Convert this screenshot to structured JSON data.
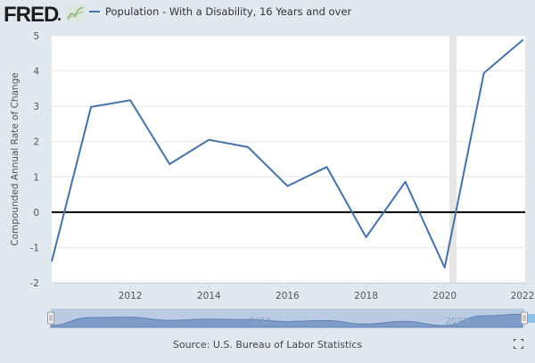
{
  "header": {
    "logo_text": "FRED",
    "logo_icon": "line-chart-icon"
  },
  "source": "Source: U.S. Bureau of Labor Statistics",
  "fullscreen_icon": "fullscreen-icon",
  "colors": {
    "series": "#4572a7",
    "background": "#e1e9f0",
    "plot": "#ffffff",
    "recession": "#e6e6e6",
    "zero_line": "#000000",
    "navigator_fill": "#7d9cc8",
    "navigator_mask": "#bccbe4"
  },
  "chart_data": {
    "type": "line",
    "title": "",
    "xlabel": "",
    "ylabel": "Compounded Annual Rate of Change",
    "legend": [
      "Population - With a Disability, 16 Years and over"
    ],
    "legend_position": "top-left",
    "x": [
      2010,
      2011,
      2012,
      2013,
      2014,
      2015,
      2016,
      2017,
      2018,
      2019,
      2020,
      2021,
      2022
    ],
    "series": [
      {
        "name": "Population - With a Disability, 16 Years and over",
        "values": [
          -1.4,
          2.98,
          3.17,
          1.36,
          2.05,
          1.84,
          0.74,
          1.28,
          -0.71,
          0.86,
          -1.57,
          3.94,
          4.89
        ]
      }
    ],
    "xlim": [
      2010,
      2022.05
    ],
    "ylim": [
      -2,
      5
    ],
    "x_ticks": [
      "2012",
      "2014",
      "2016",
      "2018",
      "2020",
      "2022"
    ],
    "x_tick_values": [
      2012,
      2014,
      2016,
      2018,
      2020,
      2022
    ],
    "y_ticks": [
      "-2",
      "-1",
      "0",
      "1",
      "2",
      "3",
      "4",
      "5"
    ],
    "y_tick_values": [
      -2,
      -1,
      0,
      1,
      2,
      3,
      4,
      5
    ],
    "grid": true,
    "recession_shading": [
      {
        "start": 2020.12,
        "end": 2020.3
      }
    ],
    "zero_line": true,
    "navigator": {
      "labels": [
        "2015",
        "2020"
      ],
      "label_values": [
        2015,
        2020
      ]
    }
  }
}
